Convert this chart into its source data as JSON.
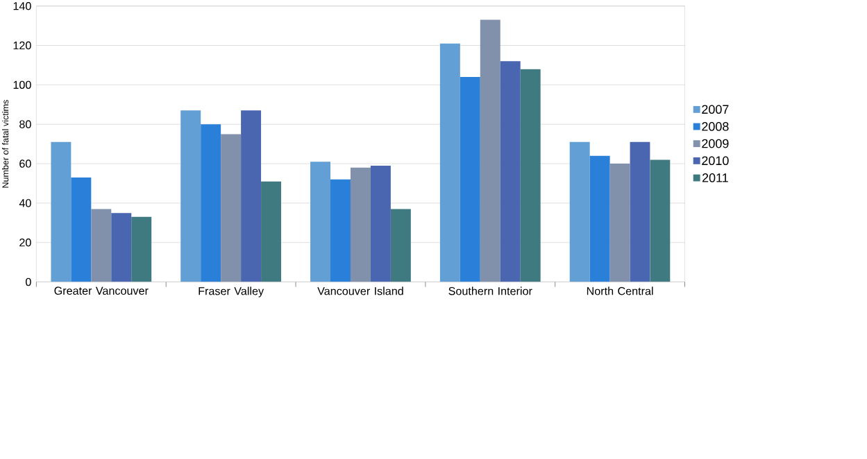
{
  "chart_data": {
    "type": "bar",
    "ylabel": "Number of fatal victims",
    "categories": [
      "Greater Vancouver",
      "Fraser Valley",
      "Vancouver Island",
      "Southern Interior",
      "North Central"
    ],
    "series": [
      {
        "name": "2007",
        "color": "#629fd5",
        "values": [
          71,
          87,
          61,
          121,
          71
        ]
      },
      {
        "name": "2008",
        "color": "#2a7fd8",
        "values": [
          53,
          80,
          52,
          104,
          64
        ]
      },
      {
        "name": "2009",
        "color": "#8191ab",
        "values": [
          37,
          75,
          58,
          133,
          60
        ]
      },
      {
        "name": "2010",
        "color": "#4a66b0",
        "values": [
          35,
          87,
          59,
          112,
          71
        ]
      },
      {
        "name": "2011",
        "color": "#3f7a80",
        "values": [
          33,
          51,
          37,
          108,
          62
        ]
      }
    ],
    "ylim": [
      0,
      140
    ],
    "yticks": [
      0,
      20,
      40,
      60,
      80,
      100,
      120,
      140
    ],
    "grid": "y",
    "legend": "right"
  }
}
